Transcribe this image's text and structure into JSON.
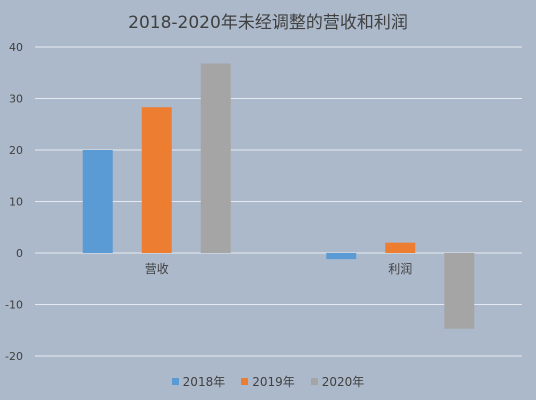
{
  "chart_data": {
    "type": "bar",
    "title": "2018-2020年未经调整的营收和利润",
    "categories": [
      "营收",
      "利润"
    ],
    "series": [
      {
        "name": "2018年",
        "values": [
          20,
          -1.2
        ],
        "color": "#5b9bd5"
      },
      {
        "name": "2019年",
        "values": [
          28.3,
          2
        ],
        "color": "#ed7d31"
      },
      {
        "name": "2020年",
        "values": [
          36.8,
          -14.7
        ],
        "color": "#a5a5a5"
      }
    ],
    "ylim": [
      -20,
      40
    ],
    "yticks": [
      -20,
      -10,
      0,
      10,
      20,
      30,
      40
    ],
    "grid": true,
    "legend_position": "bottom"
  }
}
